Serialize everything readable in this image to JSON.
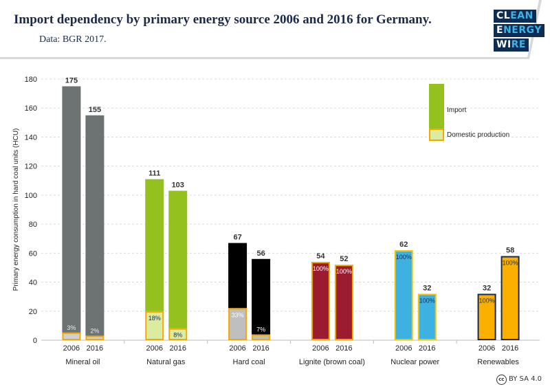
{
  "title": "Import dependency by primary energy source 2006 and 2016 for Germany.",
  "subtitle": "Data: BGR 2017.",
  "logo": {
    "lines": [
      [
        "CL",
        "EAN"
      ],
      [
        "E",
        "NERGY"
      ],
      [
        "WI",
        "RE"
      ]
    ]
  },
  "license": "BY SA 4.0",
  "chart_data": {
    "type": "bar",
    "stacked": true,
    "ylabel": "Primary energy consumption in hard coal units (HCU)",
    "ylim": [
      0,
      180
    ],
    "yticks": [
      0,
      20,
      40,
      60,
      80,
      100,
      120,
      140,
      160,
      180
    ],
    "grid": true,
    "legend": {
      "position": "top-right",
      "entries": [
        "Import",
        "Domestic production"
      ],
      "import_color": "#95c11f",
      "domestic_color": "#dbeca0",
      "domestic_border": "#f5a800"
    },
    "categories": [
      "Mineral oil",
      "Natural gas",
      "Hard coal",
      "Lignite (brown coal)",
      "Nuclear power",
      "Renewables"
    ],
    "years": [
      "2006",
      "2016"
    ],
    "groups": [
      {
        "category": "Mineral oil",
        "import_color": "#6d7272",
        "domestic_color": "#d0d0d0",
        "border": "#f5a800",
        "bars": [
          {
            "year": "2006",
            "total": 175,
            "domestic_pct": 3,
            "label": "3%"
          },
          {
            "year": "2016",
            "total": 155,
            "domestic_pct": 2,
            "label": "2%"
          }
        ]
      },
      {
        "category": "Natural gas",
        "import_color": "#95c11f",
        "domestic_color": "#dbeca0",
        "border": "#f5a800",
        "bars": [
          {
            "year": "2006",
            "total": 111,
            "domestic_pct": 18,
            "label": "18%"
          },
          {
            "year": "2016",
            "total": 103,
            "domestic_pct": 8,
            "label": "8%"
          }
        ]
      },
      {
        "category": "Hard coal",
        "import_color": "#000000",
        "domestic_color": "#bfbfbf",
        "border": "#f5a800",
        "bars": [
          {
            "year": "2006",
            "total": 67,
            "domestic_pct": 33,
            "label": "33%"
          },
          {
            "year": "2016",
            "total": 56,
            "domestic_pct": 7,
            "label": "7%"
          }
        ]
      },
      {
        "category": "Lignite (brown coal)",
        "import_color": "#9b1c31",
        "domestic_color": "#9b1c31",
        "border": "#f5a800",
        "bars": [
          {
            "year": "2006",
            "total": 54,
            "domestic_pct": 100,
            "label": "100%"
          },
          {
            "year": "2016",
            "total": 52,
            "domestic_pct": 100,
            "label": "100%"
          }
        ]
      },
      {
        "category": "Nuclear power",
        "import_color": "#3eb1e3",
        "domestic_color": "#3eb1e3",
        "border": "#f5c400",
        "bars": [
          {
            "year": "2006",
            "total": 62,
            "domestic_pct": 100,
            "label": "100%"
          },
          {
            "year": "2016",
            "total": 32,
            "domestic_pct": 100,
            "label": "100%"
          }
        ]
      },
      {
        "category": "Renewables",
        "import_color": "#fbb000",
        "domestic_color": "#fbb000",
        "border": "#1b2a4a",
        "bars": [
          {
            "year": "2006",
            "total": 32,
            "domestic_pct": 100,
            "label": "100%"
          },
          {
            "year": "2016",
            "total": 58,
            "domestic_pct": 100,
            "label": "100%"
          }
        ]
      }
    ]
  }
}
